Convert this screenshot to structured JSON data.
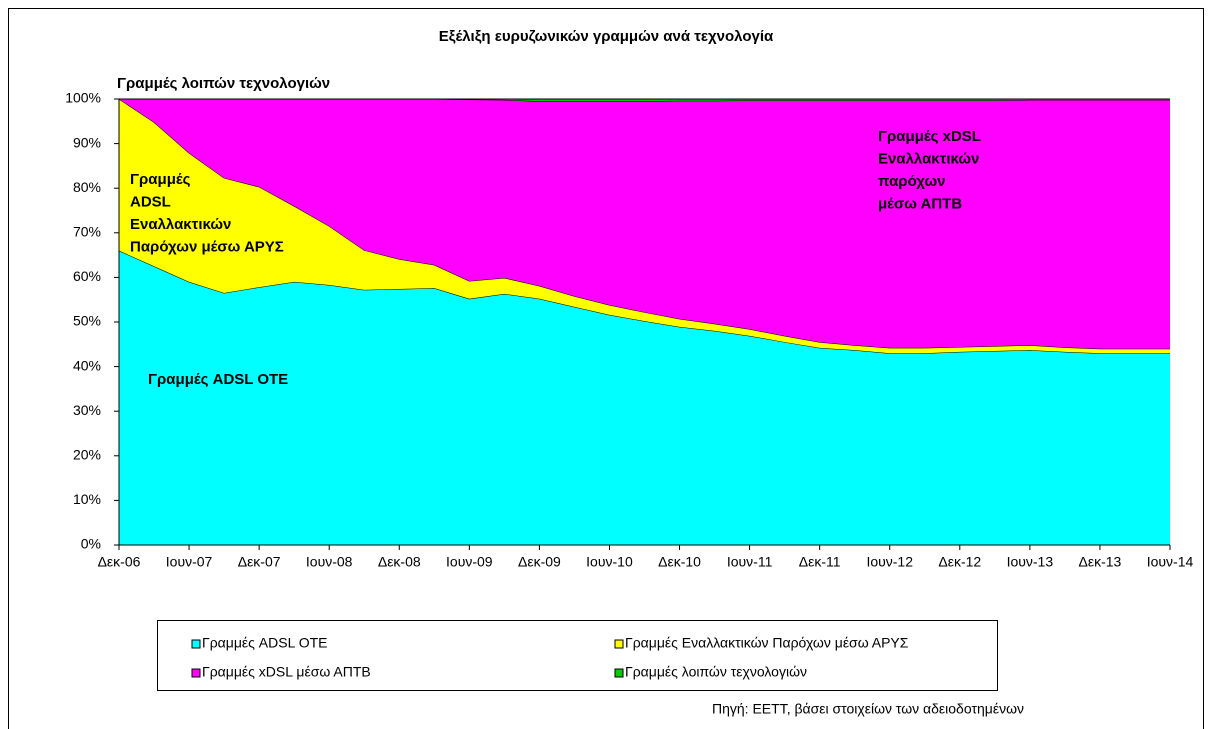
{
  "chart_data": {
    "type": "stacked_area",
    "title": "Εξέλιξη ευρυζωνικών γραμμών ανά τεχνολογία",
    "categories": [
      "Δεκ-06",
      null,
      "Ιουν-07",
      null,
      "Δεκ-07",
      null,
      "Ιουν-08",
      null,
      "Δεκ-08",
      null,
      "Ιουν-09",
      null,
      "Δεκ-09",
      null,
      "Ιουν-10",
      null,
      "Δεκ-10",
      null,
      "Ιουν-11",
      null,
      "Δεκ-11",
      null,
      "Ιουν-12",
      null,
      "Δεκ-12",
      null,
      "Ιουν-13",
      null,
      "Δεκ-13",
      null,
      "Ιουν-14"
    ],
    "series": [
      {
        "name": "Γραμμές ADSL ΟΤΕ",
        "color": "#00ffff",
        "values": [
          66,
          62.5,
          59,
          56.5,
          57.8,
          59,
          58.3,
          57.2,
          57.4,
          57.6,
          55.2,
          56.3,
          55.2,
          53.4,
          51.6,
          50.2,
          48.9,
          48,
          46.9,
          45.5,
          44.2,
          43.7,
          43,
          43,
          43.3,
          43.5,
          43.7,
          43.3,
          43,
          43,
          43
        ]
      },
      {
        "name": "Γραμμές Εναλλακτικών Παρόχων μέσω ΑΡΥΣ",
        "color": "#ffff00",
        "values": [
          34,
          32.3,
          28.9,
          25.8,
          22.5,
          17,
          13.2,
          8.9,
          6.7,
          5.2,
          4,
          3.6,
          2.9,
          2.4,
          2.2,
          2,
          1.8,
          1.6,
          1.5,
          1.4,
          1.3,
          1.1,
          1.2,
          1.2,
          1.1,
          1.1,
          1.1,
          1,
          1,
          1,
          1
        ]
      },
      {
        "name": "Γραμμές xDSL μέσω ΑΠΤΒ",
        "color": "#ff00ff",
        "values": [
          0,
          5.2,
          12.1,
          17.7,
          19.7,
          24,
          28.5,
          33.9,
          35.9,
          37.2,
          40.7,
          39.9,
          41.4,
          43.7,
          45.7,
          47.3,
          48.9,
          50,
          51.3,
          52.8,
          54.2,
          54.9,
          55.5,
          55.5,
          55.3,
          55.1,
          55,
          55.5,
          55.8,
          55.8,
          55.8
        ]
      },
      {
        "name": "Γραμμές λοιπών τεχνολογιών",
        "color": "#00cc00",
        "values": [
          0,
          0,
          0,
          0,
          0,
          0,
          0,
          0,
          0,
          0,
          0.1,
          0.2,
          0.5,
          0.5,
          0.5,
          0.5,
          0.4,
          0.4,
          0.3,
          0.3,
          0.3,
          0.3,
          0.3,
          0.3,
          0.3,
          0.3,
          0.2,
          0.2,
          0.2,
          0.2,
          0.2
        ]
      }
    ],
    "ylim": [
      0,
      100
    ],
    "yticks": [
      {
        "value": 0,
        "label": "0%"
      },
      {
        "value": 10,
        "label": "10%"
      },
      {
        "value": 20,
        "label": "20%"
      },
      {
        "value": 30,
        "label": "30%"
      },
      {
        "value": 40,
        "label": "40%"
      },
      {
        "value": 50,
        "label": "50%"
      },
      {
        "value": 60,
        "label": "60%"
      },
      {
        "value": 70,
        "label": "70%"
      },
      {
        "value": 80,
        "label": "80%"
      },
      {
        "value": 90,
        "label": "90%"
      },
      {
        "value": 100,
        "label": "100%"
      }
    ],
    "annotations": [
      {
        "lines": [
          "Γραμμές λοιπών τεχνολογιών"
        ]
      },
      {
        "lines": [
          "Γραμμές",
          "ADSL",
          "Εναλλακτικών",
          "Παρόχων μέσω ΑΡΥΣ"
        ]
      },
      {
        "lines": [
          "Γραμμές xDSL",
          "Εναλλακτικών",
          "παρόχων",
          "μέσω ΑΠΤΒ"
        ]
      },
      {
        "lines": [
          "Γραμμές ADSL ΟΤΕ"
        ]
      }
    ],
    "source": "Πηγή: ΕΕΤΤ, βάσει στοιχείων των αδειοδοτημένων",
    "grid": false
  }
}
